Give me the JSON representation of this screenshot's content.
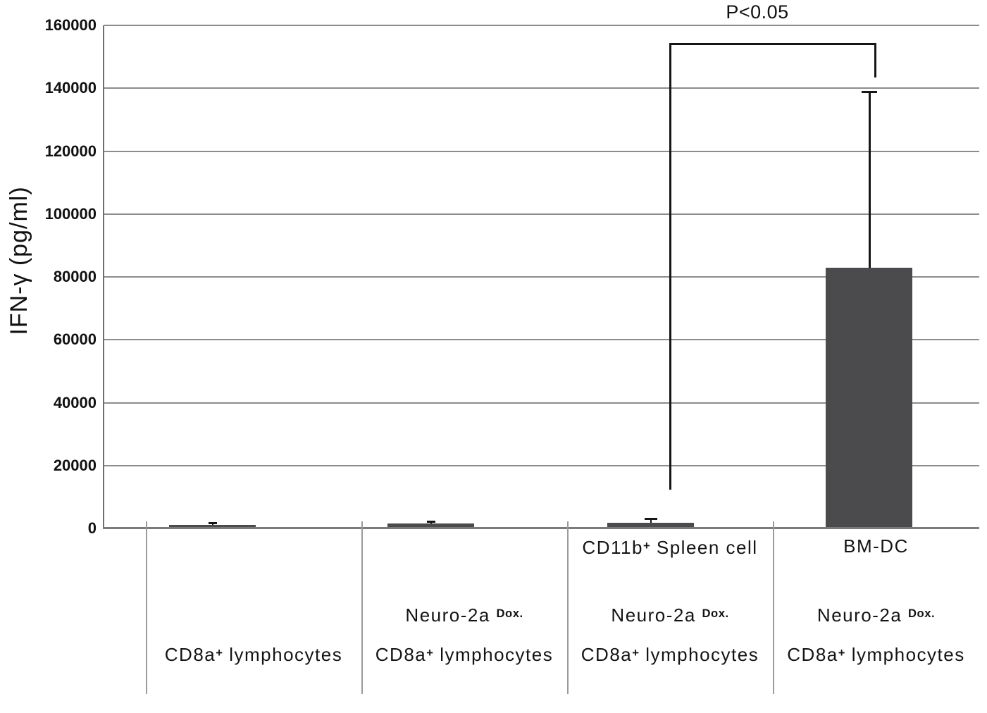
{
  "figure": {
    "background": "#ffffff",
    "text_color": "#111111"
  },
  "chart_data": {
    "type": "bar",
    "title": "",
    "xlabel": "",
    "ylabel": "IFN-γ (pg/ml)",
    "ylim": [
      0,
      160000
    ],
    "ytick_step": 20000,
    "ytick_labels": [
      "160000",
      "140000",
      "120000",
      "100000",
      "80000",
      "60000",
      "40000",
      "20000",
      "0"
    ],
    "grid": true,
    "legend": "none",
    "bar_color": "#4b4b4d",
    "gridline_color": "#8c8c8c",
    "error_color": "#161616",
    "categories": [
      "CD8a+ lymphocytes",
      "Neuro-2a Dox. CD8a+ lymphocytes",
      "CD11b+ Spleen cell Neuro-2a Dox. CD8a+ lymphocytes",
      "BM-DC Neuro-2a Dox. CD8a+ lymphocytes"
    ],
    "values": [
      1200,
      1500,
      1800,
      83000
    ],
    "error_upper": [
      1700,
      2300,
      3200,
      139000
    ],
    "significance": {
      "label": "P<0.05",
      "between": [
        "CD11b+ Spleen cell group",
        "BM-DC group"
      ]
    },
    "group_labels": [
      {
        "lines": [
          {
            "row": 2,
            "segments": [
              {
                "t": "CD8a"
              },
              {
                "t": "+",
                "sup": true
              },
              {
                "t": " lymphocytes"
              }
            ]
          }
        ]
      },
      {
        "lines": [
          {
            "row": 1,
            "segments": [
              {
                "t": "Neuro-2a "
              },
              {
                "t": "Dox.",
                "sup": true
              }
            ]
          },
          {
            "row": 2,
            "segments": [
              {
                "t": "CD8a"
              },
              {
                "t": "+",
                "sup": true
              },
              {
                "t": " lymphocytes"
              }
            ]
          }
        ]
      },
      {
        "lines": [
          {
            "row": 0,
            "segments": [
              {
                "t": "CD11b"
              },
              {
                "t": "+",
                "sup": true
              },
              {
                "t": " Spleen cell"
              }
            ]
          },
          {
            "row": 1,
            "segments": [
              {
                "t": "Neuro-2a "
              },
              {
                "t": "Dox.",
                "sup": true
              }
            ]
          },
          {
            "row": 2,
            "segments": [
              {
                "t": "CD8a"
              },
              {
                "t": "+",
                "sup": true
              },
              {
                "t": " lymphocytes"
              }
            ]
          }
        ]
      },
      {
        "lines": [
          {
            "row": 0,
            "segments": [
              {
                "t": "BM-DC"
              }
            ]
          },
          {
            "row": 1,
            "segments": [
              {
                "t": "Neuro-2a "
              },
              {
                "t": "Dox.",
                "sup": true
              }
            ]
          },
          {
            "row": 2,
            "segments": [
              {
                "t": "CD8a"
              },
              {
                "t": "+",
                "sup": true
              },
              {
                "t": " lymphocytes"
              }
            ]
          }
        ]
      }
    ]
  }
}
